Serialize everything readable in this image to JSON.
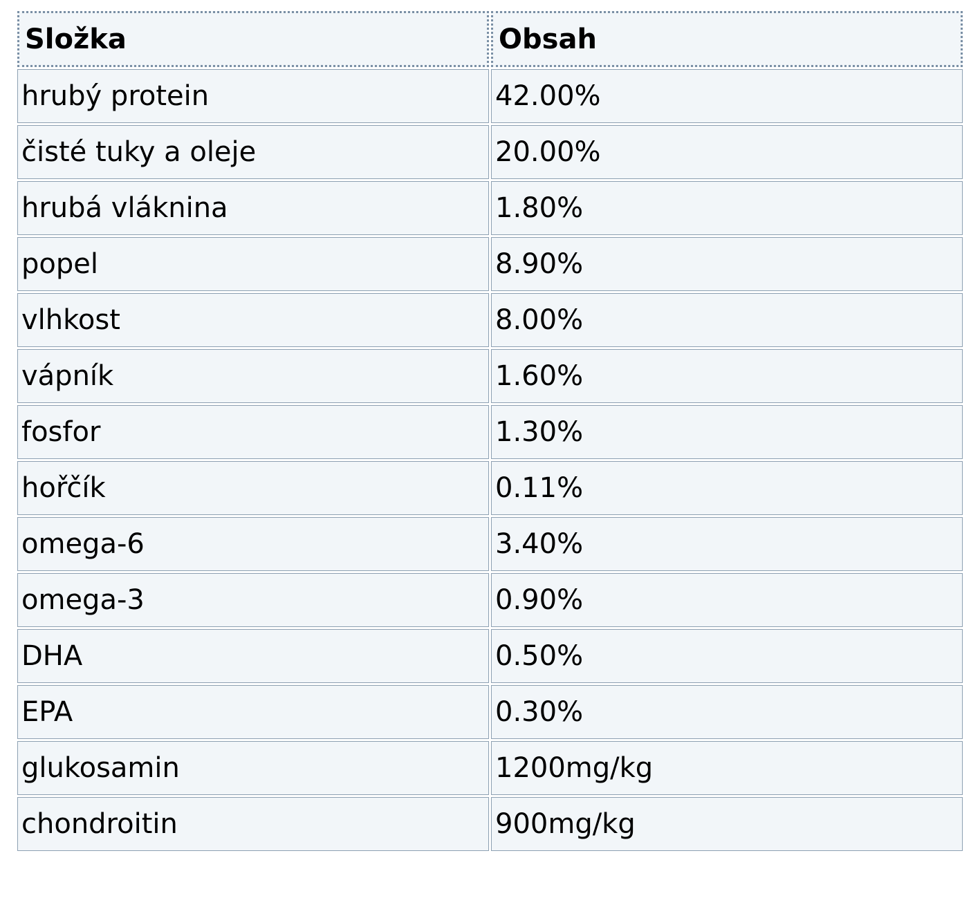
{
  "table": {
    "headers": [
      "Složka",
      "Obsah"
    ],
    "rows": [
      [
        "hrubý protein",
        "42.00%"
      ],
      [
        "čisté tuky a oleje",
        "20.00%"
      ],
      [
        "hrubá vláknina",
        "1.80%"
      ],
      [
        "popel",
        "8.90%"
      ],
      [
        "vlhkost",
        "8.00%"
      ],
      [
        "vápník",
        "1.60%"
      ],
      [
        "fosfor",
        "1.30%"
      ],
      [
        "hořčík",
        "0.11%"
      ],
      [
        "omega-6",
        "3.40%"
      ],
      [
        "omega-3",
        "0.90%"
      ],
      [
        "DHA",
        "0.50%"
      ],
      [
        "EPA",
        "0.30%"
      ],
      [
        "glukosamin",
        "1200mg/kg"
      ],
      [
        "chondroitin",
        "900mg/kg"
      ]
    ]
  }
}
